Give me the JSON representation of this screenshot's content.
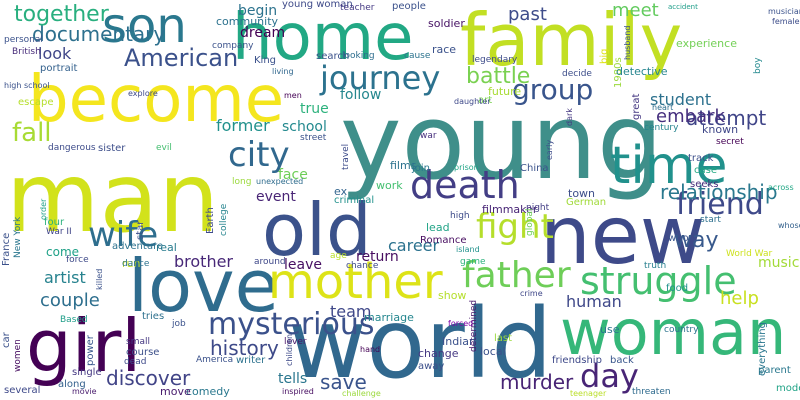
{
  "words": [
    {
      "text": "young",
      "color": "#3f8f8a"
    },
    {
      "text": "world",
      "color": "#31688e"
    },
    {
      "text": "man",
      "color": "#d2e21b"
    },
    {
      "text": "family",
      "color": "#c2df23"
    },
    {
      "text": "new",
      "color": "#3e4a89"
    },
    {
      "text": "love",
      "color": "#2f6c8e"
    },
    {
      "text": "become",
      "color": "#f4e61e"
    },
    {
      "text": "home",
      "color": "#22a884"
    },
    {
      "text": "woman",
      "color": "#35b779"
    },
    {
      "text": "girl",
      "color": "#440154"
    },
    {
      "text": "old",
      "color": "#3b528b"
    },
    {
      "text": "son",
      "color": "#2a788e"
    },
    {
      "text": "time",
      "color": "#21918c"
    },
    {
      "text": "mother",
      "color": "#dde318"
    },
    {
      "text": "death",
      "color": "#433e85"
    },
    {
      "text": "struggle",
      "color": "#44bf70"
    },
    {
      "text": "journey",
      "color": "#2c728e"
    },
    {
      "text": "city",
      "color": "#31688e"
    },
    {
      "text": "father",
      "color": "#6ece58"
    },
    {
      "text": "wife",
      "color": "#2e6e8e"
    },
    {
      "text": "fight",
      "color": "#b5de2b"
    },
    {
      "text": "fall",
      "color": "#a8db34"
    },
    {
      "text": "friend",
      "color": "#3e4989"
    },
    {
      "text": "day",
      "color": "#482576"
    },
    {
      "text": "mysterious",
      "color": "#3b518b"
    },
    {
      "text": "group",
      "color": "#39558c"
    },
    {
      "text": "American",
      "color": "#3b518b"
    },
    {
      "text": "way",
      "color": "#38598c"
    },
    {
      "text": "discover",
      "color": "#414487"
    },
    {
      "text": "battle",
      "color": "#7ad151"
    },
    {
      "text": "together",
      "color": "#29af7f"
    },
    {
      "text": "documentary",
      "color": "#2d708e"
    },
    {
      "text": "past",
      "color": "#3e4c8a"
    },
    {
      "text": "look",
      "color": "#404688"
    },
    {
      "text": "meet",
      "color": "#63cb5f"
    },
    {
      "text": "brother",
      "color": "#482878"
    },
    {
      "text": "history",
      "color": "#3e4a89"
    },
    {
      "text": "couple",
      "color": "#2e6f8e"
    },
    {
      "text": "save",
      "color": "#3a548c"
    },
    {
      "text": "murder",
      "color": "#482475"
    },
    {
      "text": "team",
      "color": "#3f4889"
    },
    {
      "text": "tells",
      "color": "#2a768e"
    },
    {
      "text": "relationship",
      "color": "#2a788e"
    },
    {
      "text": "artist",
      "color": "#26828e"
    },
    {
      "text": "return",
      "color": "#470d60"
    },
    {
      "text": "student",
      "color": "#2d718e"
    },
    {
      "text": "help",
      "color": "#c8e020"
    },
    {
      "text": "human",
      "color": "#3f4889"
    },
    {
      "text": "attempt",
      "color": "#404588"
    },
    {
      "text": "embark",
      "color": "#462f7e"
    },
    {
      "text": "follow",
      "color": "#24878e"
    },
    {
      "text": "former",
      "color": "#21918c"
    },
    {
      "text": "school",
      "color": "#23898e"
    },
    {
      "text": "true",
      "color": "#2db27d"
    },
    {
      "text": "face",
      "color": "#6ece58"
    },
    {
      "text": "career",
      "color": "#2c728e"
    },
    {
      "text": "leave",
      "color": "#471063"
    },
    {
      "text": "event",
      "color": "#482475"
    },
    {
      "text": "dream",
      "color": "#440154"
    },
    {
      "text": "begin",
      "color": "#2c738e"
    },
    {
      "text": "music",
      "color": "#a2da37"
    },
    {
      "text": "show",
      "color": "#b5de2b"
    },
    {
      "text": "known",
      "color": "#3f4788"
    },
    {
      "text": "come",
      "color": "#1fa187"
    },
    {
      "text": "town",
      "color": "#3d4e8a"
    },
    {
      "text": "real",
      "color": "#287c8e"
    },
    {
      "text": "community",
      "color": "#2c728e"
    },
    {
      "text": "young woman",
      "color": "#3e4a89"
    },
    {
      "text": "people",
      "color": "#3b518b"
    },
    {
      "text": "teacher",
      "color": "#443983"
    },
    {
      "text": "soldier",
      "color": "#471365"
    },
    {
      "text": "husband",
      "color": "#3b528b"
    },
    {
      "text": "accident",
      "color": "#1f9e89"
    },
    {
      "text": "musician",
      "color": "#3b528b"
    },
    {
      "text": "female",
      "color": "#3d4d8a"
    },
    {
      "text": "boy",
      "color": "#23898e"
    },
    {
      "text": "experience",
      "color": "#73d056"
    },
    {
      "text": "1980s",
      "color": "#9bd93c"
    },
    {
      "text": "big",
      "color": "#dde318"
    },
    {
      "text": "great",
      "color": "#453882"
    },
    {
      "text": "detective",
      "color": "#25848e"
    },
    {
      "text": "decide",
      "color": "#3d4e8a"
    },
    {
      "text": "future",
      "color": "#a8db34"
    },
    {
      "text": "art",
      "color": "#7ad151"
    },
    {
      "text": "daughter",
      "color": "#3e4989"
    },
    {
      "text": "heart",
      "color": "#2e6e8e"
    },
    {
      "text": "century",
      "color": "#25848e"
    },
    {
      "text": "secret",
      "color": "#440154"
    },
    {
      "text": "track",
      "color": "#3c4f8a"
    },
    {
      "text": "case",
      "color": "#23a983"
    },
    {
      "text": "seeks",
      "color": "#472c7a"
    },
    {
      "text": "across",
      "color": "#22a785"
    },
    {
      "text": "whose",
      "color": "#34618d"
    },
    {
      "text": "start",
      "color": "#2d708e"
    },
    {
      "text": "who",
      "color": "#3a548c"
    },
    {
      "text": "World War",
      "color": "#cde11d"
    },
    {
      "text": "truth",
      "color": "#277f8e"
    },
    {
      "text": "food",
      "color": "#20938c"
    },
    {
      "text": "everything",
      "color": "#2a768e"
    },
    {
      "text": "parent",
      "color": "#2a788e"
    },
    {
      "text": "modern",
      "color": "#20a386"
    },
    {
      "text": "threaten",
      "color": "#2f6b8e"
    },
    {
      "text": "teenager",
      "color": "#bade28"
    },
    {
      "text": "friendship",
      "color": "#3e4989"
    },
    {
      "text": "back",
      "color": "#39568c"
    },
    {
      "text": "use",
      "color": "#2b758e"
    },
    {
      "text": "local",
      "color": "#3b528b"
    },
    {
      "text": "determined",
      "color": "#481a6c"
    },
    {
      "text": "last",
      "color": "#9bd93c"
    },
    {
      "text": "Indian",
      "color": "#3b518b"
    },
    {
      "text": "change",
      "color": "#453882"
    },
    {
      "text": "away",
      "color": "#3c4f8a"
    },
    {
      "text": "forced",
      "color": "#7e03a8"
    },
    {
      "text": "crime",
      "color": "#3f4788"
    },
    {
      "text": "game",
      "color": "#2db27d"
    },
    {
      "text": "chance",
      "color": "#3e4a89"
    },
    {
      "text": "island",
      "color": "#21918c"
    },
    {
      "text": "join",
      "color": "#2a788e"
    },
    {
      "text": "prison",
      "color": "#20a486"
    },
    {
      "text": "China",
      "color": "#3b528b"
    },
    {
      "text": "filmmaker",
      "color": "#482576"
    },
    {
      "text": "night",
      "color": "#433e85"
    },
    {
      "text": "German",
      "color": "#a0da39"
    },
    {
      "text": "global",
      "color": "#6ece58"
    },
    {
      "text": "early",
      "color": "#3e4c8a"
    },
    {
      "text": "dark",
      "color": "#453882"
    },
    {
      "text": "Romance",
      "color": "#470d60"
    },
    {
      "text": "lead",
      "color": "#20a386"
    },
    {
      "text": "high",
      "color": "#3e4c8a"
    },
    {
      "text": "criminal",
      "color": "#21918c"
    },
    {
      "text": "age",
      "color": "#bade28"
    },
    {
      "text": "work",
      "color": "#44bf70"
    },
    {
      "text": "ex",
      "color": "#32648e"
    },
    {
      "text": "films",
      "color": "#2c728e"
    },
    {
      "text": "travel",
      "color": "#3e4c8a"
    },
    {
      "text": "street",
      "color": "#3b528b"
    },
    {
      "text": "war",
      "color": "#472f7d"
    },
    {
      "text": "around",
      "color": "#3f4889"
    },
    {
      "text": "run",
      "color": "#c8e020"
    },
    {
      "text": "adventure",
      "color": "#2c728e"
    },
    {
      "text": "unexpected",
      "color": "#2f6c8e"
    },
    {
      "text": "long",
      "color": "#9bd93c"
    },
    {
      "text": "Earth",
      "color": "#3e4a89"
    },
    {
      "text": "college",
      "color": "#25848e"
    },
    {
      "text": "star",
      "color": "#3c508b"
    },
    {
      "text": "lever",
      "color": "#481668"
    },
    {
      "text": "hand",
      "color": "#440154"
    },
    {
      "text": "children",
      "color": "#3e4a89"
    },
    {
      "text": "inspired",
      "color": "#470e61"
    },
    {
      "text": "challenge",
      "color": "#9bd93c"
    },
    {
      "text": "marriage",
      "color": "#24868e"
    },
    {
      "text": "job",
      "color": "#3b528b"
    },
    {
      "text": "small",
      "color": "#453882"
    },
    {
      "text": "course",
      "color": "#3c4f8a"
    },
    {
      "text": "dead",
      "color": "#3e4a89"
    },
    {
      "text": "America",
      "color": "#3b528b"
    },
    {
      "text": "writer",
      "color": "#2c728e"
    },
    {
      "text": "comedy",
      "color": "#2a788e"
    },
    {
      "text": "move",
      "color": "#481b6d"
    },
    {
      "text": "tries",
      "color": "#2d708e"
    },
    {
      "text": "dance",
      "color": "#2c728e"
    },
    {
      "text": "force",
      "color": "#3e4a89"
    },
    {
      "text": "killed",
      "color": "#3b528b"
    },
    {
      "text": "four",
      "color": "#2db27d"
    },
    {
      "text": "War II",
      "color": "#404588"
    },
    {
      "text": "Based",
      "color": "#1f9e89"
    },
    {
      "text": "single",
      "color": "#453882"
    },
    {
      "text": "along",
      "color": "#34618d"
    },
    {
      "text": "movie",
      "color": "#481b6d"
    },
    {
      "text": "several",
      "color": "#3e4989"
    },
    {
      "text": "car",
      "color": "#3b518b"
    },
    {
      "text": "women",
      "color": "#470e61"
    },
    {
      "text": "power",
      "color": "#38588c"
    },
    {
      "text": "France",
      "color": "#3b518b"
    },
    {
      "text": "New York",
      "color": "#2a768e"
    },
    {
      "text": "order",
      "color": "#1fa088"
    },
    {
      "text": "dangerous",
      "color": "#3e4c8a"
    },
    {
      "text": "escape",
      "color": "#b5de2b"
    },
    {
      "text": "high school",
      "color": "#3b528b"
    },
    {
      "text": "portrait",
      "color": "#34618d"
    },
    {
      "text": "British",
      "color": "#472c7a"
    },
    {
      "text": "personal",
      "color": "#3b528b"
    },
    {
      "text": "sister",
      "color": "#3d4e8a"
    },
    {
      "text": "evil",
      "color": "#44bf70"
    },
    {
      "text": "explore",
      "color": "#3e4a89"
    },
    {
      "text": "men",
      "color": "#440154"
    },
    {
      "text": "King",
      "color": "#3b518b"
    },
    {
      "text": "search",
      "color": "#3b528b"
    },
    {
      "text": "looking",
      "color": "#2e6e8e"
    },
    {
      "text": "cause",
      "color": "#2c738e"
    },
    {
      "text": "company",
      "color": "#3b528b"
    },
    {
      "text": "living",
      "color": "#31688e"
    },
    {
      "text": "race",
      "color": "#3b528b"
    },
    {
      "text": "legendary",
      "color": "#3e4c8a"
    },
    {
      "text": "country",
      "color": "#2c728e"
    },
    {
      "text": "encounter",
      "color": "#481b6d"
    },
    {
      "text": "end",
      "color": "#21918c"
    },
    {
      "text": "drug",
      "color": "#3b518b"
    },
    {
      "text": "yet",
      "color": "#3e4c8a"
    },
    {
      "text": "goes",
      "color": "#44bf70"
    }
  ]
}
